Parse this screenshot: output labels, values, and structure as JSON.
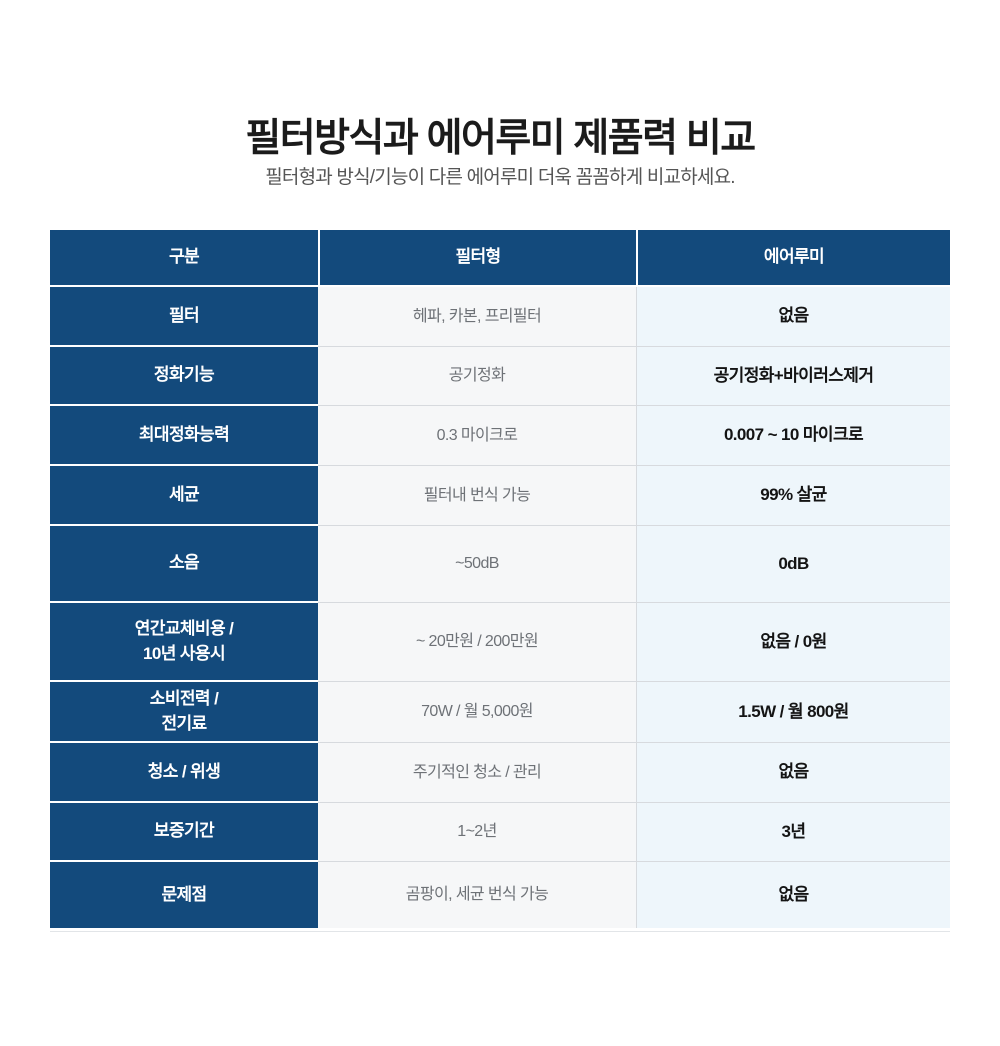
{
  "page": {
    "title": "필터방식과 에어루미 제품력 비교",
    "subtitle": "필터형과 방식/기능이 다른 에어루미 더욱 꼼꼼하게 비교하세요."
  },
  "table": {
    "headers": [
      "구분",
      "필터형",
      "에어루미"
    ],
    "rows": [
      {
        "label": "필터",
        "filter": "헤파, 카본, 프리필터",
        "airlumi": "없음"
      },
      {
        "label": "정화기능",
        "filter": "공기정화",
        "airlumi": "공기정화+바이러스제거"
      },
      {
        "label": "최대정화능력",
        "filter": "0.3 마이크로",
        "airlumi": "0.007 ~ 10 마이크로"
      },
      {
        "label": "세균",
        "filter": "필터내 번식 가능",
        "airlumi": "99% 살균"
      },
      {
        "label": "소음",
        "filter": "~50dB",
        "airlumi": "0dB"
      },
      {
        "label": "연간교체비용 /\n10년 사용시",
        "filter": "~ 20만원 / 200만원",
        "airlumi": "없음 / 0원"
      },
      {
        "label": "소비전력 /\n전기료",
        "filter": "70W / 월 5,000원",
        "airlumi": "1.5W / 월 800원"
      },
      {
        "label": "청소 / 위생",
        "filter": "주기적인 청소 / 관리",
        "airlumi": "없음"
      },
      {
        "label": "보증기간",
        "filter": "1~2년",
        "airlumi": "3년"
      },
      {
        "label": "문제점",
        "filter": "곰팡이, 세균 번식 가능",
        "airlumi": "없음"
      }
    ]
  },
  "colors": {
    "navy": "#134a7c",
    "filter_col_bg": "#f6f7f8",
    "airlumi_col_bg": "#eef6fb",
    "divider": "#d7dade",
    "title_text": "#1b1b1b",
    "subtitle_text": "#555555",
    "filter_text": "#6e7277",
    "airlumi_text": "#141414"
  }
}
